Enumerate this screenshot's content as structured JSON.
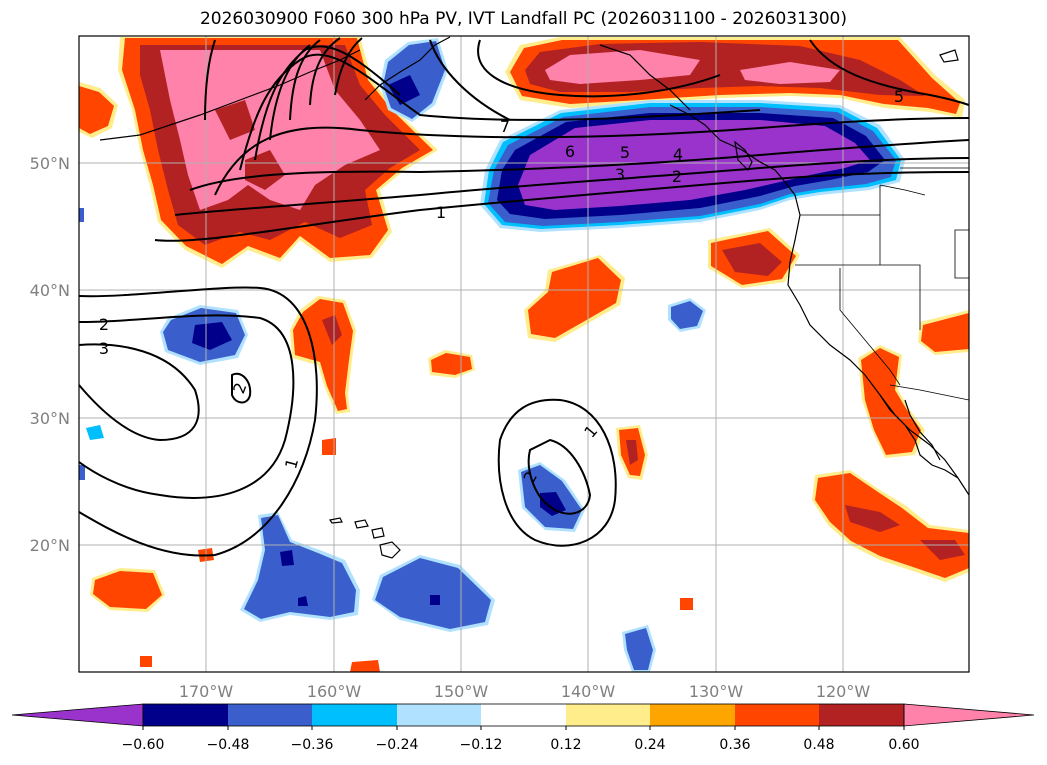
{
  "title": "2026030900 F060 300 hPa PV, IVT Landfall PC (2026031100 - 2026031300)",
  "lon_ticks": [
    "170°W",
    "160°W",
    "150°W",
    "140°W",
    "130°W",
    "120°W"
  ],
  "lat_ticks": [
    "50°N",
    "40°N",
    "30°N",
    "20°N"
  ],
  "colorbar": {
    "colors": [
      "#9933cc",
      "#00008b",
      "#3a5fcd",
      "#00bfff",
      "#b0e2ff",
      "#ffffff",
      "#ffec8b",
      "#ffa500",
      "#ff4500",
      "#b22222",
      "#ff82ab"
    ],
    "labels": [
      "−0.60",
      "−0.48",
      "−0.36",
      "−0.24",
      "−0.12",
      "0.12",
      "0.24",
      "0.36",
      "0.48",
      "0.60"
    ]
  },
  "contour_labels": [
    "7",
    "6",
    "5",
    "4",
    "3",
    "2",
    "1",
    "5",
    "2",
    "3",
    "2",
    "1",
    "1",
    "2"
  ],
  "colors": {
    "pink": "#ff82ab",
    "red": "#b22222",
    "orange_red": "#ff4500",
    "orange": "#ffa500",
    "yellow": "#ffec8b",
    "light_blue": "#b0e2ff",
    "sky_blue": "#00bfff",
    "royal_blue": "#3a5fcd",
    "navy": "#00008b",
    "purple": "#9933cc"
  }
}
